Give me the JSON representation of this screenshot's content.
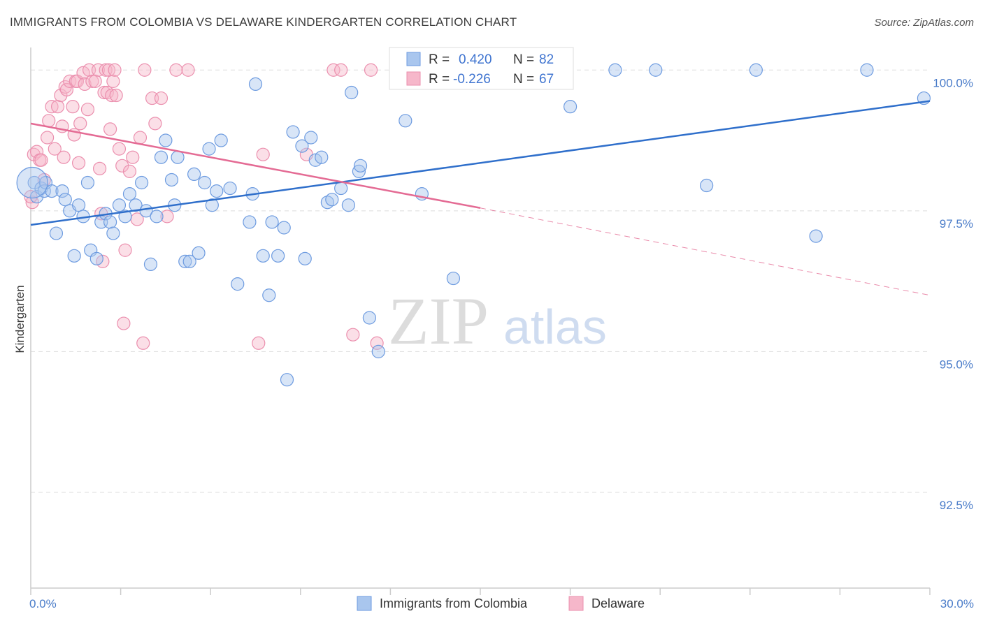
{
  "header": {
    "title": "IMMIGRANTS FROM COLOMBIA VS DELAWARE KINDERGARTEN CORRELATION CHART",
    "source": "Source: ZipAtlas.com"
  },
  "watermark": {
    "zip": "ZIP",
    "atlas": "atlas"
  },
  "chart_data": {
    "type": "scatter",
    "title": "IMMIGRANTS FROM COLOMBIA VS DELAWARE KINDERGARTEN CORRELATION CHART",
    "xlabel": "",
    "ylabel": "Kindergarten",
    "xlim": [
      0,
      30
    ],
    "ylim": [
      90.8,
      100.4
    ],
    "x_tick_labels": [
      {
        "value": 0,
        "label": "0.0%"
      },
      {
        "value": 30,
        "label": "30.0%"
      }
    ],
    "y_tick_labels": [
      {
        "value": 100,
        "label": "100.0%"
      },
      {
        "value": 97.5,
        "label": "97.5%"
      },
      {
        "value": 95,
        "label": "95.0%"
      },
      {
        "value": 92.5,
        "label": "92.5%"
      }
    ],
    "legend": {
      "placement": "top-center",
      "entries": [
        {
          "series": "Immigrants from Colombia",
          "r_label": "R =",
          "r_value": "0.420",
          "n_label": "N =",
          "n_value": "82"
        },
        {
          "series": "Delaware",
          "r_label": "R =",
          "r_value": "-0.226",
          "n_label": "N =",
          "n_value": "67"
        }
      ]
    },
    "colors": {
      "blue_fill": "#a9c6ee",
      "blue_stroke": "#6d9be0",
      "blue_line": "#2f6fcb",
      "pink_fill": "#f6b7ca",
      "pink_stroke": "#eb8fae",
      "pink_line": "#e46b94",
      "grid": "#dddddd",
      "axis": "#cccccc"
    },
    "series": [
      {
        "name": "Immigrants from Colombia",
        "trend": {
          "x0": 0,
          "y0": 97.25,
          "x1": 30,
          "y1": 99.45
        },
        "points": [
          [
            0.12,
            98.0
          ],
          [
            0.2,
            97.75
          ],
          [
            0.35,
            97.9
          ],
          [
            0.45,
            97.85
          ],
          [
            0.5,
            98.0
          ],
          [
            0.7,
            97.85
          ],
          [
            0.85,
            97.1
          ],
          [
            1.05,
            97.85
          ],
          [
            1.15,
            97.7
          ],
          [
            1.3,
            97.5
          ],
          [
            1.45,
            96.7
          ],
          [
            1.6,
            97.6
          ],
          [
            1.75,
            97.4
          ],
          [
            1.9,
            98.0
          ],
          [
            2.0,
            96.8
          ],
          [
            2.2,
            96.65
          ],
          [
            2.35,
            97.3
          ],
          [
            2.5,
            97.45
          ],
          [
            2.65,
            97.3
          ],
          [
            2.75,
            97.1
          ],
          [
            2.95,
            97.6
          ],
          [
            3.15,
            97.4
          ],
          [
            3.3,
            97.8
          ],
          [
            3.5,
            97.6
          ],
          [
            3.7,
            98.0
          ],
          [
            3.85,
            97.5
          ],
          [
            4.0,
            96.55
          ],
          [
            4.2,
            97.4
          ],
          [
            4.35,
            98.45
          ],
          [
            4.5,
            98.75
          ],
          [
            4.7,
            98.05
          ],
          [
            4.8,
            97.6
          ],
          [
            4.9,
            98.45
          ],
          [
            5.15,
            96.6
          ],
          [
            5.3,
            96.6
          ],
          [
            5.45,
            98.15
          ],
          [
            5.6,
            96.75
          ],
          [
            5.8,
            98.0
          ],
          [
            5.95,
            98.6
          ],
          [
            6.05,
            97.6
          ],
          [
            6.2,
            97.85
          ],
          [
            6.35,
            98.75
          ],
          [
            6.65,
            97.9
          ],
          [
            6.9,
            96.2
          ],
          [
            7.3,
            97.3
          ],
          [
            7.4,
            97.8
          ],
          [
            7.5,
            99.75
          ],
          [
            7.75,
            96.7
          ],
          [
            7.95,
            96.0
          ],
          [
            8.05,
            97.3
          ],
          [
            8.25,
            96.7
          ],
          [
            8.45,
            97.2
          ],
          [
            8.55,
            94.5
          ],
          [
            8.75,
            98.9
          ],
          [
            9.05,
            98.65
          ],
          [
            9.15,
            96.65
          ],
          [
            9.35,
            98.8
          ],
          [
            9.5,
            98.4
          ],
          [
            9.7,
            98.45
          ],
          [
            9.9,
            97.65
          ],
          [
            10.05,
            97.7
          ],
          [
            10.35,
            97.9
          ],
          [
            10.6,
            97.6
          ],
          [
            10.7,
            99.6
          ],
          [
            10.95,
            98.2
          ],
          [
            11.0,
            98.3
          ],
          [
            11.3,
            95.6
          ],
          [
            11.6,
            95.0
          ],
          [
            12.5,
            99.1
          ],
          [
            12.65,
            100.0
          ],
          [
            13.05,
            97.8
          ],
          [
            14.1,
            96.3
          ],
          [
            15.0,
            100.0
          ],
          [
            18.0,
            99.35
          ],
          [
            19.5,
            100.0
          ],
          [
            20.85,
            100.0
          ],
          [
            22.55,
            97.95
          ],
          [
            24.2,
            100.0
          ],
          [
            26.2,
            97.05
          ],
          [
            27.9,
            100.0
          ],
          [
            29.8,
            99.5
          ],
          [
            0.05,
            98.0
          ]
        ]
      },
      {
        "name": "Delaware",
        "trend": {
          "x0": 0,
          "y0": 99.05,
          "x1": 15,
          "y1": 97.55
        },
        "trend_dashed": {
          "x0": 15,
          "y0": 97.55,
          "x1": 30,
          "y1": 96.0
        },
        "points": [
          [
            0.05,
            97.65
          ],
          [
            0.1,
            98.5
          ],
          [
            0.2,
            98.55
          ],
          [
            0.3,
            98.4
          ],
          [
            0.35,
            98.4
          ],
          [
            0.45,
            98.05
          ],
          [
            0.55,
            98.8
          ],
          [
            0.6,
            99.1
          ],
          [
            0.7,
            99.35
          ],
          [
            0.8,
            98.6
          ],
          [
            0.9,
            99.35
          ],
          [
            1.0,
            99.55
          ],
          [
            1.05,
            99.0
          ],
          [
            1.1,
            98.45
          ],
          [
            1.15,
            99.7
          ],
          [
            1.2,
            99.65
          ],
          [
            1.3,
            99.8
          ],
          [
            1.4,
            99.35
          ],
          [
            1.45,
            98.85
          ],
          [
            1.5,
            99.8
          ],
          [
            1.55,
            99.8
          ],
          [
            1.6,
            98.35
          ],
          [
            1.65,
            99.05
          ],
          [
            1.75,
            99.95
          ],
          [
            1.8,
            99.75
          ],
          [
            1.9,
            99.3
          ],
          [
            1.95,
            100.0
          ],
          [
            2.05,
            99.8
          ],
          [
            2.15,
            99.8
          ],
          [
            2.25,
            100.0
          ],
          [
            2.3,
            98.25
          ],
          [
            2.35,
            97.45
          ],
          [
            2.4,
            96.6
          ],
          [
            2.45,
            99.6
          ],
          [
            2.5,
            100.0
          ],
          [
            2.55,
            99.6
          ],
          [
            2.6,
            100.0
          ],
          [
            2.65,
            98.95
          ],
          [
            2.7,
            99.55
          ],
          [
            2.75,
            99.8
          ],
          [
            2.8,
            100.0
          ],
          [
            2.85,
            99.55
          ],
          [
            2.95,
            98.6
          ],
          [
            3.05,
            98.3
          ],
          [
            3.1,
            95.5
          ],
          [
            3.15,
            96.8
          ],
          [
            3.3,
            98.2
          ],
          [
            3.4,
            98.45
          ],
          [
            3.55,
            97.35
          ],
          [
            3.65,
            98.8
          ],
          [
            3.75,
            95.15
          ],
          [
            3.8,
            100.0
          ],
          [
            4.05,
            99.5
          ],
          [
            4.15,
            99.05
          ],
          [
            4.35,
            99.5
          ],
          [
            4.55,
            97.4
          ],
          [
            4.85,
            100.0
          ],
          [
            5.25,
            100.0
          ],
          [
            7.6,
            95.15
          ],
          [
            7.75,
            98.5
          ],
          [
            9.2,
            98.5
          ],
          [
            10.1,
            100.0
          ],
          [
            10.35,
            100.0
          ],
          [
            10.75,
            95.3
          ],
          [
            11.35,
            100.0
          ],
          [
            11.55,
            95.15
          ],
          [
            0.0,
            97.75
          ]
        ]
      }
    ]
  },
  "bottom_legend": [
    {
      "label": "Immigrants from Colombia"
    },
    {
      "label": "Delaware"
    }
  ]
}
